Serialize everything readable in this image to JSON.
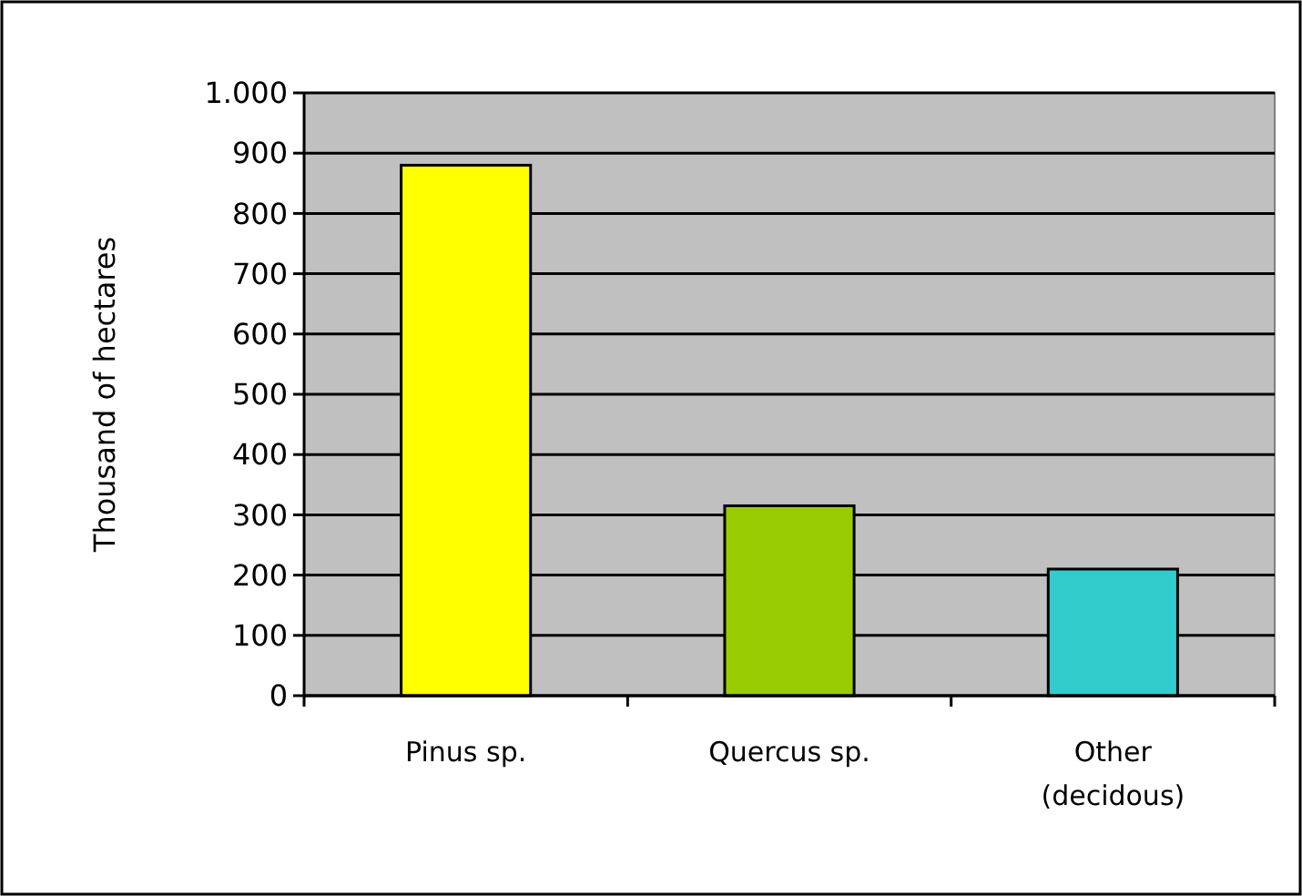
{
  "chart_data": {
    "type": "bar",
    "ylabel": "Thousand of hectares",
    "categories": [
      "Pinus sp.",
      "Quercus sp.",
      "Other (decidous)"
    ],
    "values": [
      880,
      315,
      210
    ],
    "colors": [
      "#ffff00",
      "#99cc00",
      "#33cccc"
    ],
    "ylim": [
      0,
      1000
    ],
    "yticks": [
      0,
      100,
      200,
      300,
      400,
      500,
      600,
      700,
      800,
      900,
      {
        "value": 1000,
        "label": "1.000"
      }
    ],
    "grid": "y"
  }
}
